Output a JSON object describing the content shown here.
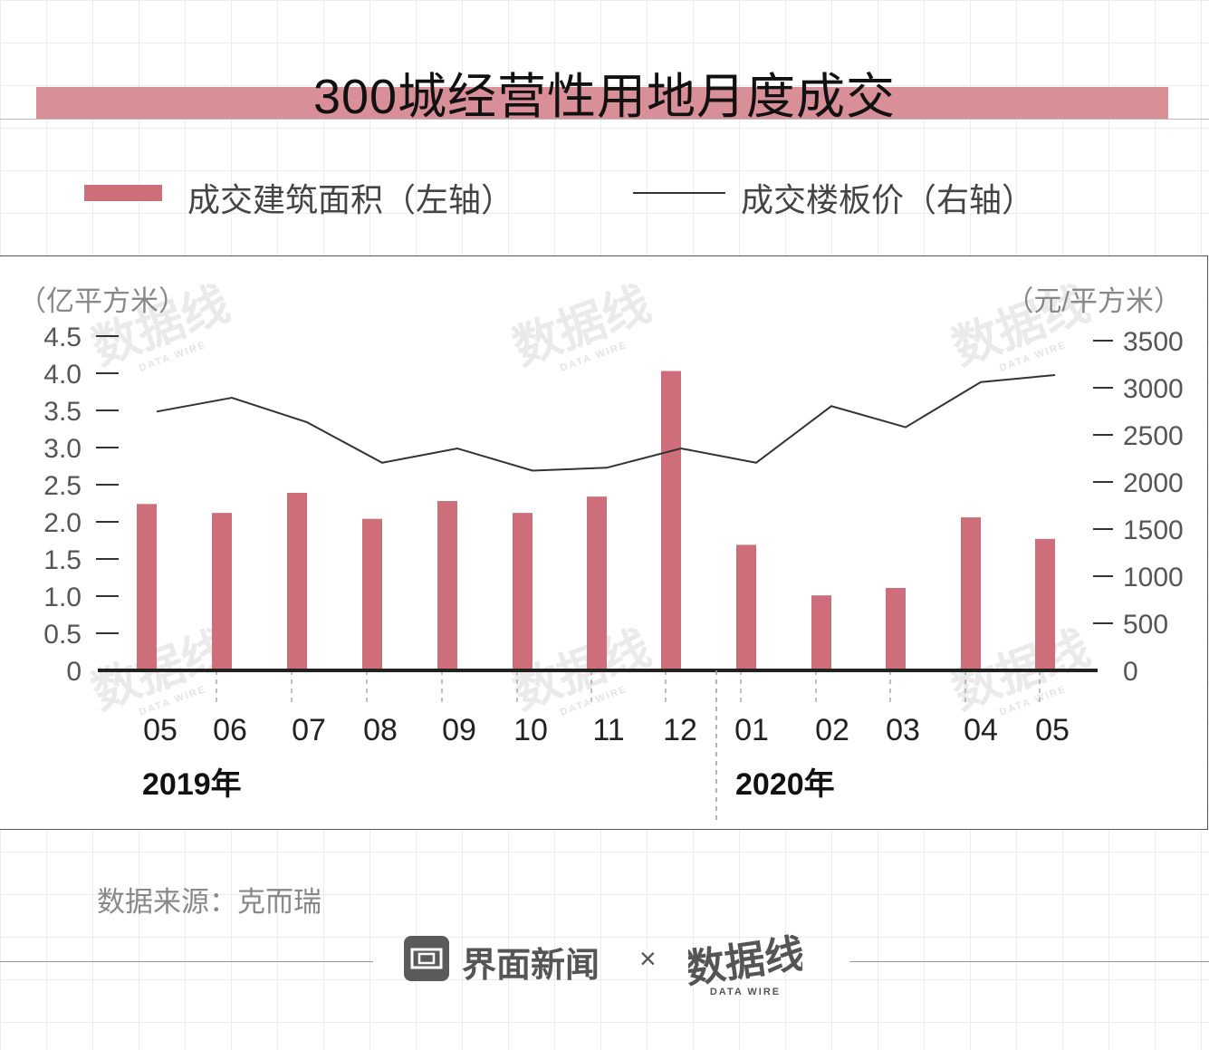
{
  "header": {
    "title": "300城经营性用地月度成交"
  },
  "legend": {
    "bar_label": "成交建筑面积（左轴）",
    "line_label": "成交楼板价（右轴）"
  },
  "colors": {
    "bar": "#cd6e7a",
    "line": "#333333",
    "title_band": "#d98f97"
  },
  "chart_data": {
    "type": "bar+line",
    "categories": [
      "05",
      "06",
      "07",
      "08",
      "09",
      "10",
      "11",
      "12",
      "01",
      "02",
      "03",
      "04",
      "05"
    ],
    "year_groups": [
      {
        "label": "2019年",
        "start": 0,
        "end": 7
      },
      {
        "label": "2020年",
        "start": 8,
        "end": 12
      }
    ],
    "series": [
      {
        "name": "成交建筑面积（左轴）",
        "type": "bar",
        "axis": "left",
        "values": [
          2.24,
          2.12,
          2.39,
          2.04,
          2.28,
          2.12,
          2.34,
          4.03,
          1.69,
          1.01,
          1.11,
          2.06,
          1.77
        ]
      },
      {
        "name": "成交楼板价（右轴）",
        "type": "line",
        "axis": "right",
        "values": [
          2747,
          2894,
          2634,
          2204,
          2356,
          2120,
          2151,
          2356,
          2204,
          2805,
          2581,
          3060,
          3135
        ]
      }
    ],
    "y_left": {
      "unit_label": "（亿平方米）",
      "ticks": [
        "0",
        "0.5",
        "1.0",
        "1.5",
        "2.0",
        "2.5",
        "3.0",
        "3.5",
        "4.0",
        "4.5"
      ],
      "tick_values": [
        0,
        0.5,
        1.0,
        1.5,
        2.0,
        2.5,
        3.0,
        3.5,
        4.0,
        4.5
      ]
    },
    "y_right": {
      "unit_label": "（元/平方米）",
      "ticks": [
        "0",
        "500",
        "1000",
        "1500",
        "2000",
        "2500",
        "3000",
        "3500"
      ],
      "tick_values": [
        0,
        500,
        1000,
        1500,
        2000,
        2500,
        3000,
        3500
      ]
    }
  },
  "source": "数据来源：克而瑞",
  "footer": {
    "brand": "界面新闻",
    "times": "×",
    "datawire_cn": "数据线",
    "datawire_en": "DATA WIRE"
  },
  "watermark": {
    "cn": "数据线",
    "en": "DATA WIRE"
  }
}
